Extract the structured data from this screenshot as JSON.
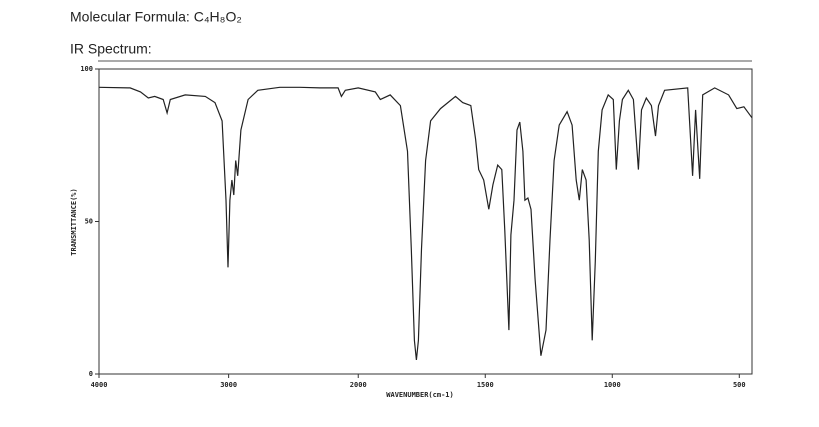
{
  "chart_data": {
    "type": "line",
    "title": "Molecular Formula: C₄H₈O₂",
    "subtitle": "IR Spectrum:",
    "x_label": "WAVENUMBER(cm-1)",
    "y_label": "TRANSMITTANCE(%)",
    "x_scale_break": 2000,
    "xlim": [
      4000,
      450
    ],
    "xticks": [
      4000,
      3000,
      2000,
      1500,
      1000,
      500
    ],
    "ylim": [
      0,
      100
    ],
    "yticks": [
      0,
      50,
      100
    ],
    "color": "#222222",
    "x": [
      4000,
      3760,
      3680,
      3620,
      3570,
      3505,
      3475,
      3450,
      3335,
      3180,
      3105,
      3050,
      3020,
      3005,
      2990,
      2975,
      2960,
      2945,
      2930,
      2905,
      2850,
      2775,
      2605,
      2450,
      2295,
      2155,
      2130,
      2100,
      2000,
      1933,
      1913,
      1874,
      1834,
      1806,
      1791,
      1779,
      1771,
      1763,
      1751,
      1735,
      1715,
      1676,
      1617,
      1589,
      1557,
      1538,
      1526,
      1506,
      1486,
      1470,
      1451,
      1435,
      1423,
      1407,
      1399,
      1387,
      1375,
      1364,
      1352,
      1344,
      1332,
      1320,
      1304,
      1281,
      1261,
      1245,
      1229,
      1209,
      1178,
      1158,
      1142,
      1130,
      1118,
      1103,
      1091,
      1079,
      1067,
      1055,
      1040,
      1016,
      996,
      984,
      972,
      960,
      937,
      917,
      897,
      885,
      866,
      846,
      830,
      818,
      794,
      703,
      684,
      672,
      656,
      644,
      597,
      542,
      510,
      482,
      450
    ],
    "values": [
      94,
      93.8,
      92.5,
      90.5,
      91,
      90,
      85.6,
      90,
      91.5,
      91,
      89,
      83,
      57,
      35,
      57,
      63.6,
      58.7,
      70,
      65,
      80,
      90,
      93,
      94,
      94,
      93.8,
      93.8,
      91,
      93,
      93.8,
      92.5,
      90,
      91.5,
      88,
      73,
      41,
      11,
      4.6,
      11,
      41,
      70,
      83,
      87,
      91,
      89,
      88,
      77,
      67,
      63.6,
      54,
      62,
      68.5,
      67,
      47,
      14.4,
      45.6,
      57,
      80,
      82.6,
      73,
      57,
      57.7,
      54,
      31,
      6,
      14.4,
      44,
      70,
      81.6,
      86,
      81.6,
      63.6,
      57,
      67,
      63.6,
      44,
      11,
      37,
      73,
      86.6,
      91.5,
      90,
      67,
      83,
      90,
      93,
      90,
      67,
      86.6,
      90.5,
      88,
      78,
      88,
      93,
      93.8,
      65,
      86.6,
      64,
      91.5,
      93.8,
      91.5,
      87,
      87.6,
      84
    ]
  }
}
